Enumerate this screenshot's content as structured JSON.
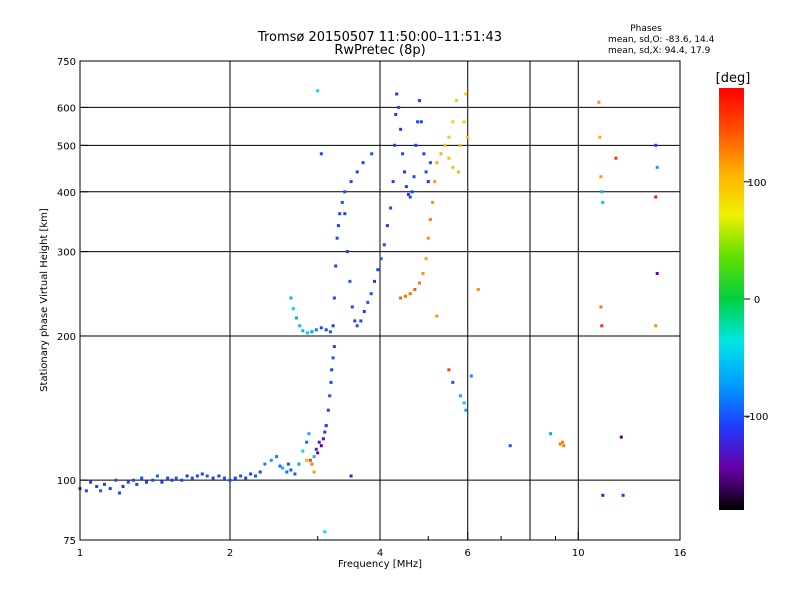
{
  "chart_data": {
    "type": "scatter",
    "title": "Tromsø 20150507 11:50:00–11:51:43",
    "subtitle": "RwPretec (8p)",
    "xlabel": "Frequency [MHz]",
    "ylabel": "Stationary phase Virtual Height [km]",
    "x_scale": "log",
    "y_scale": "log",
    "xlim": [
      1,
      16
    ],
    "ylim": [
      75,
      750
    ],
    "x_ticks": [
      1,
      2,
      4,
      6,
      10,
      16
    ],
    "x_grid": [
      2,
      4,
      6,
      8,
      10
    ],
    "x_minor": [
      3,
      5,
      7,
      8,
      9
    ],
    "y_ticks": [
      75,
      100,
      200,
      300,
      400,
      500,
      600,
      750
    ],
    "y_grid": [
      100,
      200,
      300,
      400,
      500,
      600
    ],
    "grid": true,
    "phase_stats": {
      "title": "Phases",
      "line_o": "mean, sd,O:  -83.6, 14.4",
      "line_x": "mean, sd,X:  94.4, 17.9"
    },
    "colorbar": {
      "label": "[deg]",
      "range": [
        -180,
        180
      ],
      "ticks": [
        100,
        0,
        -100
      ],
      "stops": [
        "#000000",
        "#6a00a8",
        "#1e3cff",
        "#00a0ff",
        "#00e5e5",
        "#00d040",
        "#60e000",
        "#f0f000",
        "#ffb000",
        "#ff5000",
        "#ff0000"
      ]
    },
    "series": [
      {
        "points": [
          {
            "x": 1.0,
            "y": 96,
            "phase": -105
          },
          {
            "x": 1.03,
            "y": 95,
            "phase": -105
          },
          {
            "x": 1.05,
            "y": 99,
            "phase": -110
          },
          {
            "x": 1.08,
            "y": 97,
            "phase": -108
          },
          {
            "x": 1.1,
            "y": 95,
            "phase": -100
          },
          {
            "x": 1.12,
            "y": 98,
            "phase": -105
          },
          {
            "x": 1.15,
            "y": 96,
            "phase": -112
          },
          {
            "x": 1.18,
            "y": 100,
            "phase": -100
          },
          {
            "x": 1.2,
            "y": 94,
            "phase": -105
          },
          {
            "x": 1.22,
            "y": 97,
            "phase": -110
          },
          {
            "x": 1.25,
            "y": 99,
            "phase": -100
          },
          {
            "x": 1.28,
            "y": 100,
            "phase": -108
          },
          {
            "x": 1.3,
            "y": 98,
            "phase": -105
          },
          {
            "x": 1.33,
            "y": 101,
            "phase": -100
          },
          {
            "x": 1.36,
            "y": 99,
            "phase": -112
          },
          {
            "x": 1.4,
            "y": 100,
            "phase": -105
          },
          {
            "x": 1.43,
            "y": 102,
            "phase": -100
          },
          {
            "x": 1.46,
            "y": 99,
            "phase": -108
          },
          {
            "x": 1.5,
            "y": 101,
            "phase": -105
          },
          {
            "x": 1.53,
            "y": 100,
            "phase": -110
          },
          {
            "x": 1.56,
            "y": 101,
            "phase": -100
          },
          {
            "x": 1.6,
            "y": 100,
            "phase": -105
          },
          {
            "x": 1.64,
            "y": 102,
            "phase": -108
          },
          {
            "x": 1.68,
            "y": 101,
            "phase": -100
          },
          {
            "x": 1.72,
            "y": 102,
            "phase": -105
          },
          {
            "x": 1.76,
            "y": 103,
            "phase": -110
          },
          {
            "x": 1.8,
            "y": 102,
            "phase": -100
          },
          {
            "x": 1.85,
            "y": 101,
            "phase": -105
          },
          {
            "x": 1.9,
            "y": 102,
            "phase": -108
          },
          {
            "x": 1.95,
            "y": 101,
            "phase": -100
          },
          {
            "x": 2.0,
            "y": 100,
            "phase": -105
          },
          {
            "x": 2.05,
            "y": 101,
            "phase": -110
          },
          {
            "x": 2.1,
            "y": 102,
            "phase": -100
          },
          {
            "x": 2.15,
            "y": 101,
            "phase": -105
          },
          {
            "x": 2.2,
            "y": 103,
            "phase": -108
          },
          {
            "x": 2.25,
            "y": 102,
            "phase": -100
          },
          {
            "x": 2.3,
            "y": 104,
            "phase": -105
          },
          {
            "x": 2.35,
            "y": 108,
            "phase": -80
          },
          {
            "x": 2.42,
            "y": 110,
            "phase": -70
          },
          {
            "x": 2.48,
            "y": 112,
            "phase": -85
          },
          {
            "x": 2.52,
            "y": 107,
            "phase": -95
          },
          {
            "x": 2.55,
            "y": 106,
            "phase": -60
          },
          {
            "x": 2.6,
            "y": 104,
            "phase": -90
          },
          {
            "x": 2.62,
            "y": 108,
            "phase": -100
          },
          {
            "x": 2.65,
            "y": 105,
            "phase": -95
          },
          {
            "x": 2.7,
            "y": 103,
            "phase": -100
          },
          {
            "x": 2.75,
            "y": 108,
            "phase": -70
          },
          {
            "x": 2.8,
            "y": 115,
            "phase": -40
          },
          {
            "x": 2.85,
            "y": 120,
            "phase": -90
          },
          {
            "x": 2.88,
            "y": 125,
            "phase": -60
          },
          {
            "x": 2.9,
            "y": 110,
            "phase": 150
          },
          {
            "x": 2.92,
            "y": 108,
            "phase": 130
          },
          {
            "x": 2.95,
            "y": 112,
            "phase": -60
          },
          {
            "x": 2.98,
            "y": 116,
            "phase": -120
          },
          {
            "x": 3.0,
            "y": 114,
            "phase": -140
          },
          {
            "x": 3.02,
            "y": 120,
            "phase": -130
          },
          {
            "x": 3.05,
            "y": 118,
            "phase": -150
          },
          {
            "x": 3.08,
            "y": 122,
            "phase": -140
          },
          {
            "x": 3.1,
            "y": 126,
            "phase": -120
          },
          {
            "x": 3.12,
            "y": 130,
            "phase": -110
          },
          {
            "x": 2.85,
            "y": 110,
            "phase": 110
          },
          {
            "x": 2.95,
            "y": 104,
            "phase": 120
          },
          {
            "x": 3.12,
            "y": 130,
            "phase": -105
          },
          {
            "x": 3.15,
            "y": 140,
            "phase": -110
          },
          {
            "x": 3.17,
            "y": 150,
            "phase": -100
          },
          {
            "x": 3.19,
            "y": 160,
            "phase": -105
          },
          {
            "x": 3.2,
            "y": 170,
            "phase": -110
          },
          {
            "x": 3.22,
            "y": 180,
            "phase": -100
          },
          {
            "x": 3.24,
            "y": 190,
            "phase": -105
          },
          {
            "x": 2.65,
            "y": 240,
            "phase": -60
          },
          {
            "x": 2.68,
            "y": 228,
            "phase": -50
          },
          {
            "x": 2.72,
            "y": 218,
            "phase": -65
          },
          {
            "x": 2.76,
            "y": 210,
            "phase": -55
          },
          {
            "x": 2.8,
            "y": 205,
            "phase": -60
          },
          {
            "x": 2.86,
            "y": 203,
            "phase": -50
          },
          {
            "x": 2.92,
            "y": 204,
            "phase": -70
          },
          {
            "x": 2.98,
            "y": 206,
            "phase": -90
          },
          {
            "x": 3.05,
            "y": 208,
            "phase": -100
          },
          {
            "x": 3.12,
            "y": 206,
            "phase": -105
          },
          {
            "x": 3.18,
            "y": 204,
            "phase": -100
          },
          {
            "x": 3.22,
            "y": 210,
            "phase": -110
          },
          {
            "x": 3.24,
            "y": 240,
            "phase": -105
          },
          {
            "x": 3.26,
            "y": 280,
            "phase": -110
          },
          {
            "x": 3.28,
            "y": 320,
            "phase": -105
          },
          {
            "x": 3.3,
            "y": 340,
            "phase": -110
          },
          {
            "x": 3.32,
            "y": 360,
            "phase": -105
          },
          {
            "x": 3.36,
            "y": 380,
            "phase": -100
          },
          {
            "x": 3.4,
            "y": 360,
            "phase": -110
          },
          {
            "x": 3.44,
            "y": 300,
            "phase": -105
          },
          {
            "x": 3.48,
            "y": 260,
            "phase": -100
          },
          {
            "x": 3.52,
            "y": 230,
            "phase": -105
          },
          {
            "x": 3.56,
            "y": 215,
            "phase": -110
          },
          {
            "x": 3.6,
            "y": 210,
            "phase": -100
          },
          {
            "x": 3.66,
            "y": 215,
            "phase": -105
          },
          {
            "x": 3.72,
            "y": 225,
            "phase": -110
          },
          {
            "x": 3.78,
            "y": 235,
            "phase": -100
          },
          {
            "x": 3.84,
            "y": 245,
            "phase": -105
          },
          {
            "x": 3.9,
            "y": 260,
            "phase": -110
          },
          {
            "x": 3.96,
            "y": 275,
            "phase": -105
          },
          {
            "x": 4.02,
            "y": 290,
            "phase": -100
          },
          {
            "x": 4.08,
            "y": 310,
            "phase": -105
          },
          {
            "x": 4.14,
            "y": 340,
            "phase": -110
          },
          {
            "x": 4.2,
            "y": 370,
            "phase": -105
          },
          {
            "x": 3.4,
            "y": 400,
            "phase": -100
          },
          {
            "x": 3.5,
            "y": 420,
            "phase": -105
          },
          {
            "x": 3.6,
            "y": 440,
            "phase": -110
          },
          {
            "x": 3.7,
            "y": 460,
            "phase": -105
          },
          {
            "x": 3.85,
            "y": 480,
            "phase": -100
          },
          {
            "x": 4.25,
            "y": 420,
            "phase": -110
          },
          {
            "x": 4.28,
            "y": 500,
            "phase": -105
          },
          {
            "x": 4.3,
            "y": 580,
            "phase": -110
          },
          {
            "x": 4.32,
            "y": 640,
            "phase": -115
          },
          {
            "x": 4.36,
            "y": 600,
            "phase": -105
          },
          {
            "x": 4.4,
            "y": 540,
            "phase": -110
          },
          {
            "x": 4.44,
            "y": 480,
            "phase": -105
          },
          {
            "x": 4.48,
            "y": 440,
            "phase": -110
          },
          {
            "x": 4.52,
            "y": 410,
            "phase": -105
          },
          {
            "x": 4.56,
            "y": 395,
            "phase": -110
          },
          {
            "x": 4.6,
            "y": 390,
            "phase": -105
          },
          {
            "x": 4.64,
            "y": 400,
            "phase": -110
          },
          {
            "x": 4.68,
            "y": 430,
            "phase": -105
          },
          {
            "x": 4.72,
            "y": 500,
            "phase": -110
          },
          {
            "x": 4.76,
            "y": 560,
            "phase": -105
          },
          {
            "x": 4.8,
            "y": 620,
            "phase": -110
          },
          {
            "x": 4.84,
            "y": 560,
            "phase": -105
          },
          {
            "x": 4.9,
            "y": 480,
            "phase": -110
          },
          {
            "x": 4.95,
            "y": 440,
            "phase": -105
          },
          {
            "x": 5.0,
            "y": 420,
            "phase": -110
          },
          {
            "x": 5.05,
            "y": 460,
            "phase": -100
          },
          {
            "x": 4.4,
            "y": 240,
            "phase": 140
          },
          {
            "x": 4.5,
            "y": 242,
            "phase": 130
          },
          {
            "x": 4.6,
            "y": 245,
            "phase": 135
          },
          {
            "x": 4.7,
            "y": 250,
            "phase": 140
          },
          {
            "x": 4.8,
            "y": 258,
            "phase": 130
          },
          {
            "x": 4.88,
            "y": 270,
            "phase": 120
          },
          {
            "x": 4.95,
            "y": 290,
            "phase": 115
          },
          {
            "x": 5.0,
            "y": 320,
            "phase": 120
          },
          {
            "x": 5.05,
            "y": 350,
            "phase": 125
          },
          {
            "x": 5.1,
            "y": 380,
            "phase": 120
          },
          {
            "x": 5.15,
            "y": 420,
            "phase": 115
          },
          {
            "x": 5.2,
            "y": 460,
            "phase": 110
          },
          {
            "x": 5.3,
            "y": 480,
            "phase": 105
          },
          {
            "x": 5.4,
            "y": 500,
            "phase": 100
          },
          {
            "x": 5.5,
            "y": 520,
            "phase": 95
          },
          {
            "x": 5.6,
            "y": 560,
            "phase": 90
          },
          {
            "x": 5.7,
            "y": 620,
            "phase": 95
          },
          {
            "x": 5.5,
            "y": 470,
            "phase": 100
          },
          {
            "x": 5.6,
            "y": 450,
            "phase": 95
          },
          {
            "x": 5.8,
            "y": 500,
            "phase": 100
          },
          {
            "x": 5.75,
            "y": 440,
            "phase": 105
          },
          {
            "x": 5.9,
            "y": 560,
            "phase": 90
          },
          {
            "x": 5.95,
            "y": 640,
            "phase": 95
          },
          {
            "x": 6.0,
            "y": 520,
            "phase": 100
          },
          {
            "x": 5.2,
            "y": 220,
            "phase": 120
          },
          {
            "x": 3.0,
            "y": 650,
            "phase": -40
          },
          {
            "x": 3.05,
            "y": 480,
            "phase": -105
          },
          {
            "x": 3.5,
            "y": 102,
            "phase": -130
          },
          {
            "x": 3.1,
            "y": 78,
            "phase": -40
          },
          {
            "x": 5.5,
            "y": 170,
            "phase": 150
          },
          {
            "x": 5.6,
            "y": 160,
            "phase": -100
          },
          {
            "x": 5.8,
            "y": 150,
            "phase": -60
          },
          {
            "x": 5.9,
            "y": 145,
            "phase": -50
          },
          {
            "x": 5.95,
            "y": 140,
            "phase": -70
          },
          {
            "x": 6.1,
            "y": 165,
            "phase": -80
          },
          {
            "x": 6.3,
            "y": 250,
            "phase": 120
          },
          {
            "x": 7.3,
            "y": 118,
            "phase": -100
          },
          {
            "x": 8.8,
            "y": 125,
            "phase": -70
          },
          {
            "x": 9.2,
            "y": 119,
            "phase": 130
          },
          {
            "x": 9.3,
            "y": 120,
            "phase": 130
          },
          {
            "x": 9.35,
            "y": 118,
            "phase": 125
          },
          {
            "x": 11.0,
            "y": 615,
            "phase": 120
          },
          {
            "x": 11.05,
            "y": 520,
            "phase": 110
          },
          {
            "x": 11.1,
            "y": 430,
            "phase": 115
          },
          {
            "x": 11.15,
            "y": 400,
            "phase": -60
          },
          {
            "x": 11.2,
            "y": 380,
            "phase": -50
          },
          {
            "x": 11.1,
            "y": 230,
            "phase": 130
          },
          {
            "x": 11.15,
            "y": 210,
            "phase": 160
          },
          {
            "x": 11.2,
            "y": 93,
            "phase": -130
          },
          {
            "x": 11.9,
            "y": 470,
            "phase": 160
          },
          {
            "x": 12.2,
            "y": 123,
            "phase": -150
          },
          {
            "x": 12.3,
            "y": 93,
            "phase": -110
          },
          {
            "x": 14.3,
            "y": 500,
            "phase": -110
          },
          {
            "x": 14.4,
            "y": 450,
            "phase": -70
          },
          {
            "x": 14.3,
            "y": 390,
            "phase": 170
          },
          {
            "x": 14.4,
            "y": 270,
            "phase": -140
          },
          {
            "x": 14.3,
            "y": 210,
            "phase": 120
          }
        ]
      }
    ]
  }
}
